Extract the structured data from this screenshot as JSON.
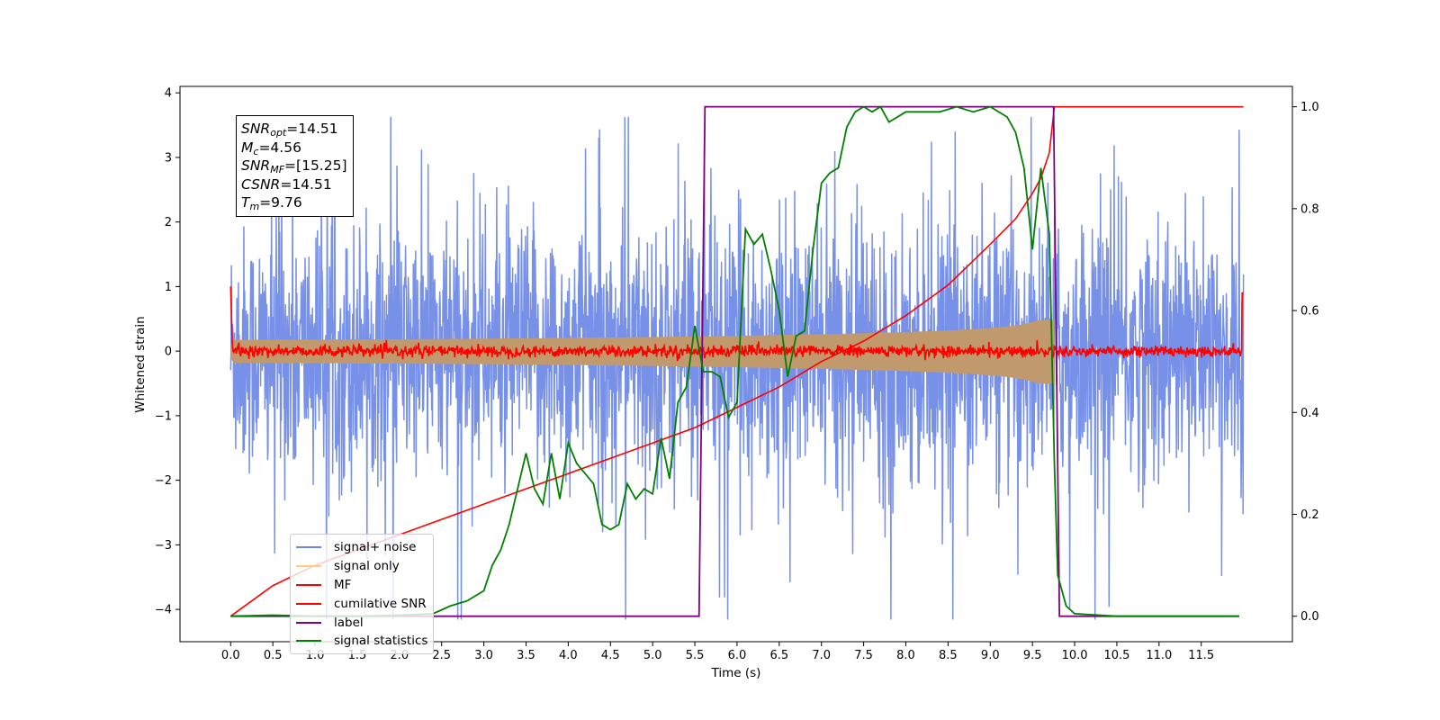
{
  "chart_data": {
    "type": "line",
    "xlabel": "Time (s)",
    "ylabel": "Whitened strain",
    "xlim": [
      -0.6,
      12.58
    ],
    "ylim_left": [
      -4.5,
      4.1
    ],
    "ylim_right": [
      -0.05,
      1.04
    ],
    "x_ticks": [
      "0.0",
      "0.5",
      "1.0",
      "1.5",
      "2.0",
      "2.5",
      "3.0",
      "3.5",
      "4.0",
      "4.5",
      "5.0",
      "5.5",
      "6.0",
      "6.5",
      "7.0",
      "7.5",
      "8.0",
      "8.5",
      "9.0",
      "9.5",
      "10.0",
      "10.5",
      "11.0",
      "11.5"
    ],
    "y_ticks_left": [
      "−4",
      "−3",
      "−2",
      "−1",
      "0",
      "1",
      "2",
      "3",
      "4"
    ],
    "y_ticks_right": [
      "0.0",
      "0.2",
      "0.4",
      "0.6",
      "0.8",
      "1.0"
    ],
    "annotation": {
      "snr_opt": "=14.51",
      "mc": "=4.56",
      "snr_mf": "=[15.25]",
      "csnr": "=14.51",
      "tm": "=9.76"
    },
    "series": [
      {
        "name": "signal+ noise",
        "color": "#6b87e6",
        "axis": "left",
        "note": "broadband noise, amplitude about ±2.5 with peaks near ±3.6, x from 0 to 12"
      },
      {
        "name": "signal only",
        "color": "#ffcc80",
        "axis": "left",
        "note": "chirp, envelope grows from about ±0.1 to about ±0.75 at 9.76 s"
      },
      {
        "name": "MF",
        "color": "#ff0000",
        "axis": "left",
        "note": "near 0 with spikes of about 1.0 at x=0 and 0.9 at x=12"
      },
      {
        "name": "cumilative SNR",
        "color": "#ff0000",
        "axis": "right",
        "x": [
          0.0,
          0.5,
          1.0,
          1.5,
          2.0,
          2.5,
          3.0,
          3.5,
          4.0,
          4.5,
          5.0,
          5.5,
          6.0,
          6.5,
          7.0,
          7.5,
          8.0,
          8.5,
          9.0,
          9.3,
          9.5,
          9.6,
          9.7,
          9.76,
          12.0
        ],
        "y": [
          0.0,
          0.06,
          0.1,
          0.13,
          0.16,
          0.19,
          0.22,
          0.25,
          0.28,
          0.31,
          0.34,
          0.37,
          0.41,
          0.45,
          0.5,
          0.54,
          0.59,
          0.65,
          0.73,
          0.78,
          0.83,
          0.86,
          0.91,
          1.0,
          1.0
        ]
      },
      {
        "name": "label",
        "color": "#800080",
        "axis": "right",
        "x": [
          0.0,
          5.55,
          5.62,
          9.75,
          9.82,
          11.95
        ],
        "y": [
          0.0,
          0.0,
          1.0,
          1.0,
          0.0,
          0.0
        ]
      },
      {
        "name": "signal statistics",
        "color": "#008000",
        "axis": "right",
        "x": [
          0.0,
          0.5,
          1.0,
          1.5,
          2.0,
          2.4,
          2.6,
          2.8,
          3.0,
          3.1,
          3.2,
          3.3,
          3.4,
          3.5,
          3.6,
          3.7,
          3.8,
          3.9,
          4.0,
          4.1,
          4.2,
          4.3,
          4.4,
          4.5,
          4.6,
          4.7,
          4.8,
          4.9,
          5.0,
          5.1,
          5.2,
          5.3,
          5.4,
          5.5,
          5.6,
          5.7,
          5.8,
          5.9,
          6.0,
          6.1,
          6.2,
          6.3,
          6.4,
          6.5,
          6.6,
          6.7,
          6.8,
          6.9,
          7.0,
          7.1,
          7.2,
          7.3,
          7.4,
          7.5,
          7.6,
          7.7,
          7.8,
          7.9,
          8.0,
          8.2,
          8.4,
          8.6,
          8.8,
          9.0,
          9.2,
          9.3,
          9.4,
          9.5,
          9.6,
          9.7,
          9.76,
          9.8,
          9.9,
          10.0,
          10.5,
          11.0,
          11.5,
          11.95
        ],
        "y": [
          0.0,
          0.002,
          0.0,
          0.0,
          0.002,
          0.005,
          0.02,
          0.03,
          0.05,
          0.1,
          0.13,
          0.18,
          0.25,
          0.32,
          0.25,
          0.22,
          0.32,
          0.23,
          0.34,
          0.3,
          0.28,
          0.26,
          0.18,
          0.17,
          0.18,
          0.26,
          0.23,
          0.25,
          0.24,
          0.35,
          0.27,
          0.42,
          0.45,
          0.57,
          0.48,
          0.48,
          0.47,
          0.39,
          0.42,
          0.76,
          0.73,
          0.75,
          0.68,
          0.6,
          0.47,
          0.55,
          0.56,
          0.72,
          0.85,
          0.87,
          0.88,
          0.96,
          0.99,
          1.0,
          0.99,
          1.0,
          0.97,
          0.98,
          0.99,
          0.99,
          0.99,
          1.0,
          0.99,
          1.0,
          0.98,
          0.95,
          0.88,
          0.72,
          0.88,
          0.75,
          0.3,
          0.08,
          0.02,
          0.005,
          0.0,
          0.0,
          0.0,
          0.0
        ]
      }
    ],
    "legend_location": "lower-left",
    "grid": false
  }
}
